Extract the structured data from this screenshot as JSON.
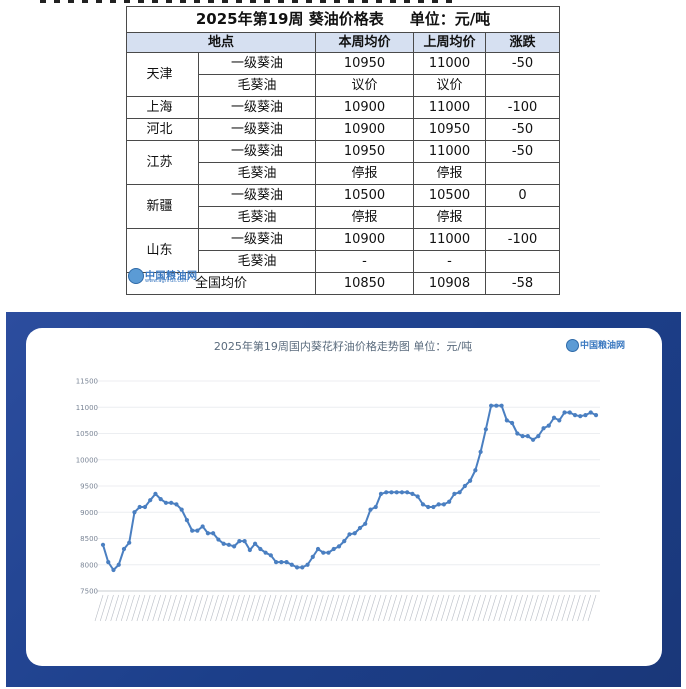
{
  "table": {
    "title": "2025年第19周 葵油价格表",
    "unit": "单位：元/吨",
    "headers": [
      "地点",
      "本周均价",
      "上周均价",
      "涨跌"
    ],
    "rows": [
      {
        "region": "天津",
        "product": "一级葵油",
        "this_week": "10950",
        "last_week": "11000",
        "change": "-50"
      },
      {
        "region": "",
        "product": "毛葵油",
        "this_week": "议价",
        "last_week": "议价",
        "change": ""
      },
      {
        "region": "上海",
        "product": "一级葵油",
        "this_week": "10900",
        "last_week": "11000",
        "change": "-100"
      },
      {
        "region": "河北",
        "product": "一级葵油",
        "this_week": "10900",
        "last_week": "10950",
        "change": "-50"
      },
      {
        "region": "江苏",
        "product": "一级葵油",
        "this_week": "10950",
        "last_week": "11000",
        "change": "-50"
      },
      {
        "region": "",
        "product": "毛葵油",
        "this_week": "停报",
        "last_week": "停报",
        "change": ""
      },
      {
        "region": "新疆",
        "product": "一级葵油",
        "this_week": "10500",
        "last_week": "10500",
        "change": "0"
      },
      {
        "region": "",
        "product": "毛葵油",
        "this_week": "停报",
        "last_week": "停报",
        "change": ""
      },
      {
        "region": "山东",
        "product": "一级葵油",
        "this_week": "10900",
        "last_week": "11000",
        "change": "-100"
      },
      {
        "region": "",
        "product": "毛葵油",
        "this_week": "-",
        "last_week": "-",
        "change": ""
      }
    ],
    "national": {
      "label": "全国均价",
      "this_week": "10850",
      "last_week": "10908",
      "change": "-58"
    },
    "logo_text": "中国粮油网",
    "logo_url": "www.agrirus.com"
  },
  "chart_data": {
    "type": "line",
    "title": "2025年第19周国内葵花籽油价格走势图  单位：元/吨",
    "logo_text": "中国粮油网",
    "ylim": [
      7500,
      11500
    ],
    "yticks": [
      "7500",
      "8000",
      "8500",
      "9000",
      "9500",
      "10000",
      "10500",
      "11000",
      "11500"
    ],
    "grid": true,
    "legend": "none",
    "color": "#4a7fc1",
    "values": [
      8380,
      8050,
      7900,
      8000,
      8300,
      8420,
      9000,
      9100,
      9100,
      9230,
      9350,
      9250,
      9180,
      9180,
      9150,
      9050,
      8850,
      8650,
      8650,
      8730,
      8600,
      8600,
      8480,
      8400,
      8380,
      8350,
      8450,
      8450,
      8280,
      8400,
      8300,
      8230,
      8180,
      8050,
      8050,
      8050,
      8000,
      7950,
      7950,
      8000,
      8150,
      8300,
      8230,
      8230,
      8300,
      8350,
      8450,
      8580,
      8600,
      8700,
      8780,
      9050,
      9100,
      9350,
      9380,
      9380,
      9380,
      9380,
      9380,
      9350,
      9300,
      9150,
      9100,
      9100,
      9150,
      9150,
      9200,
      9350,
      9380,
      9500,
      9600,
      9800,
      10150,
      10580,
      11030,
      11030,
      11030,
      10750,
      10700,
      10500,
      10450,
      10450,
      10380,
      10450,
      10600,
      10650,
      10800,
      10750,
      10900,
      10900,
      10850,
      10830,
      10850,
      10900,
      10850
    ]
  }
}
